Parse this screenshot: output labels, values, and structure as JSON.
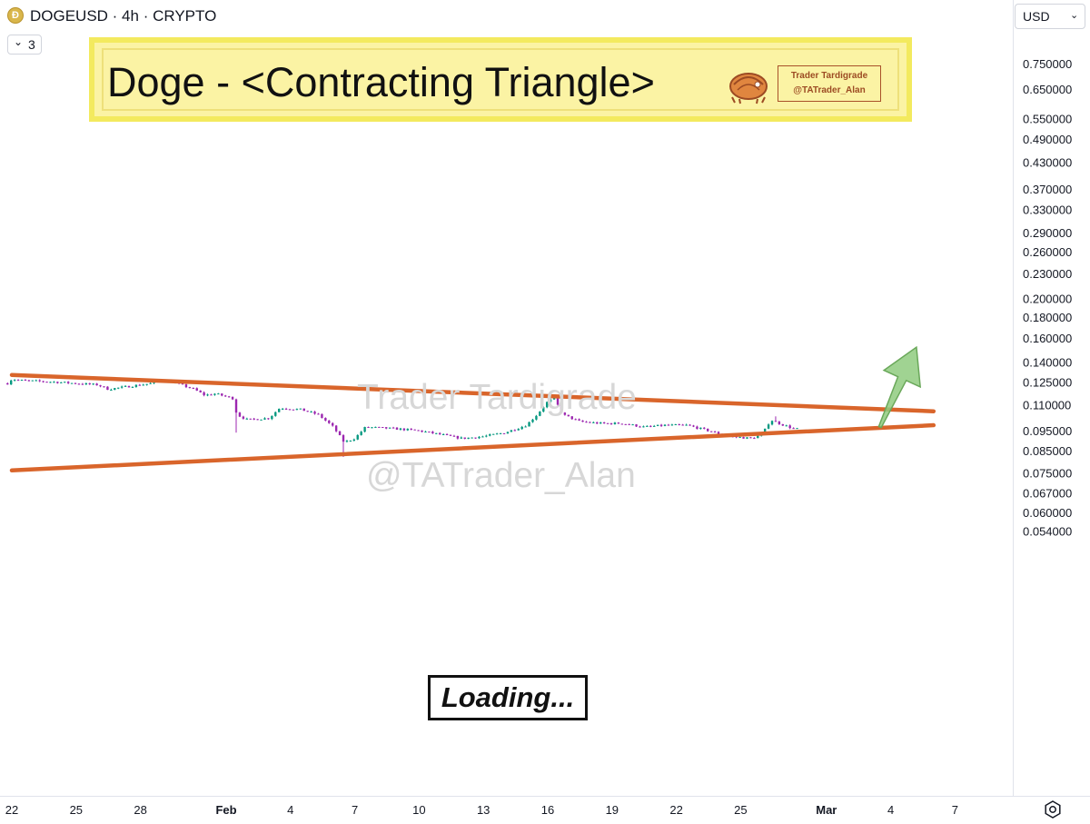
{
  "header": {
    "coin_icon": "doge-coin-icon",
    "coin_glyph": "Ð",
    "symbol": "DOGEUSD · 4h · CRYPTO",
    "chevron_icon": "chevron-down-icon",
    "interval_count": "3"
  },
  "banner": {
    "title": "Doge - <Contracting Triangle>",
    "logo_icon": "tardigrade-logo",
    "logo_line1": "Trader Tardigrade",
    "logo_line2": "@TATrader_Alan"
  },
  "watermark": {
    "line1": "Trader Tardigrade",
    "line2": "@TATrader_Alan"
  },
  "annotation": {
    "loading": "Loading..."
  },
  "currency": {
    "label": "USD",
    "chevron_icon": "chevron-down-icon"
  },
  "settings_icon": "gear-icon",
  "colors": {
    "up": "#089981",
    "down": "#9c27b0",
    "trendline": "#d9652b",
    "arrow_fill": "#8fcb7f",
    "arrow_stroke": "#6aa85a",
    "banner_bg": "#fbf3a4"
  },
  "chart_data": {
    "type": "candlestick",
    "title": "Doge - <Contracting Triangle>",
    "symbol": "DOGEUSD",
    "interval": "4h",
    "y_scale": "log",
    "ylim": [
      0.05,
      0.78
    ],
    "y_ticks": [
      0.75,
      0.65,
      0.55,
      0.49,
      0.43,
      0.37,
      0.33,
      0.29,
      0.26,
      0.23,
      0.2,
      0.18,
      0.16,
      0.14,
      0.125,
      0.11,
      0.095,
      0.085,
      0.075,
      0.067,
      0.06,
      0.054
    ],
    "y_tick_labels": [
      "0.750000",
      "0.650000",
      "0.550000",
      "0.490000",
      "0.430000",
      "0.370000",
      "0.330000",
      "0.290000",
      "0.260000",
      "0.230000",
      "0.200000",
      "0.180000",
      "0.160000",
      "0.140000",
      "0.125000",
      "0.110000",
      "0.095000",
      "0.085000",
      "0.075000",
      "0.067000",
      "0.060000",
      "0.054000"
    ],
    "x_ticks": [
      {
        "label": "22",
        "day": -10
      },
      {
        "label": "25",
        "day": -7
      },
      {
        "label": "28",
        "day": -4
      },
      {
        "label": "Feb",
        "day": 0
      },
      {
        "label": "4",
        "day": 3
      },
      {
        "label": "7",
        "day": 6
      },
      {
        "label": "10",
        "day": 9
      },
      {
        "label": "13",
        "day": 12
      },
      {
        "label": "16",
        "day": 15
      },
      {
        "label": "19",
        "day": 18
      },
      {
        "label": "22",
        "day": 21
      },
      {
        "label": "25",
        "day": 24
      },
      {
        "label": "Mar",
        "day": 28
      },
      {
        "label": "4",
        "day": 31
      },
      {
        "label": "7",
        "day": 34
      }
    ],
    "x_tick_bold": [
      "Feb",
      "Mar"
    ],
    "price_keypoints": [
      {
        "day": -10.2,
        "close": 0.124
      },
      {
        "day": -10.0,
        "close": 0.127
      },
      {
        "day": -9.5,
        "close": 0.126
      },
      {
        "day": -8.0,
        "close": 0.125
      },
      {
        "day": -7.0,
        "close": 0.124
      },
      {
        "day": -6.0,
        "close": 0.123
      },
      {
        "day": -5.5,
        "close": 0.12
      },
      {
        "day": -4.5,
        "close": 0.122
      },
      {
        "day": -3.5,
        "close": 0.124
      },
      {
        "day": -3.0,
        "close": 0.126
      },
      {
        "day": -2.5,
        "close": 0.125
      },
      {
        "day": -1.5,
        "close": 0.12
      },
      {
        "day": -1.0,
        "close": 0.116
      },
      {
        "day": -0.5,
        "close": 0.117
      },
      {
        "day": 0.3,
        "close": 0.114
      },
      {
        "day": 0.5,
        "close": 0.104
      },
      {
        "day": 1.0,
        "close": 0.101
      },
      {
        "day": 2.0,
        "close": 0.102
      },
      {
        "day": 2.5,
        "close": 0.108
      },
      {
        "day": 3.5,
        "close": 0.107
      },
      {
        "day": 4.3,
        "close": 0.104
      },
      {
        "day": 5.0,
        "close": 0.097
      },
      {
        "day": 5.5,
        "close": 0.089
      },
      {
        "day": 6.0,
        "close": 0.091
      },
      {
        "day": 6.5,
        "close": 0.097
      },
      {
        "day": 8.0,
        "close": 0.096
      },
      {
        "day": 9.0,
        "close": 0.095
      },
      {
        "day": 10.0,
        "close": 0.093
      },
      {
        "day": 11.0,
        "close": 0.091
      },
      {
        "day": 12.0,
        "close": 0.092
      },
      {
        "day": 13.0,
        "close": 0.094
      },
      {
        "day": 14.0,
        "close": 0.098
      },
      {
        "day": 14.5,
        "close": 0.104
      },
      {
        "day": 15.0,
        "close": 0.112
      },
      {
        "day": 15.3,
        "close": 0.114
      },
      {
        "day": 15.7,
        "close": 0.104
      },
      {
        "day": 16.5,
        "close": 0.1
      },
      {
        "day": 17.5,
        "close": 0.099
      },
      {
        "day": 18.5,
        "close": 0.099
      },
      {
        "day": 19.5,
        "close": 0.097
      },
      {
        "day": 20.5,
        "close": 0.098
      },
      {
        "day": 21.5,
        "close": 0.098
      },
      {
        "day": 22.5,
        "close": 0.095
      },
      {
        "day": 23.5,
        "close": 0.092
      },
      {
        "day": 24.5,
        "close": 0.091
      },
      {
        "day": 25.0,
        "close": 0.093
      },
      {
        "day": 25.4,
        "close": 0.101
      },
      {
        "day": 25.8,
        "close": 0.099
      },
      {
        "day": 26.5,
        "close": 0.096
      },
      {
        "day": 26.8,
        "close": 0.096
      }
    ],
    "spikes": [
      {
        "day": 0.5,
        "low": 0.094
      },
      {
        "day": 5.5,
        "low": 0.082
      },
      {
        "day": 15.2,
        "high": 0.118
      },
      {
        "day": 25.6,
        "high": 0.103
      }
    ],
    "trendlines": [
      {
        "name": "upper",
        "from": {
          "day": -10,
          "price": 0.13
        },
        "to": {
          "day": 33,
          "price": 0.106
        }
      },
      {
        "name": "lower",
        "from": {
          "day": -10,
          "price": 0.076
        },
        "to": {
          "day": 33,
          "price": 0.098
        }
      }
    ],
    "arrow": {
      "from": {
        "day": 30.5,
        "price": 0.097
      },
      "to": {
        "day": 32.2,
        "price": 0.152
      },
      "direction": "up"
    }
  }
}
